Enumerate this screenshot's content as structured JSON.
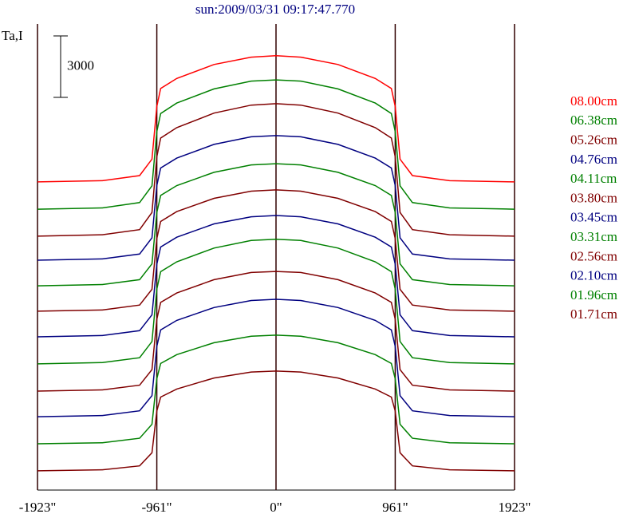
{
  "chart_data": {
    "type": "line",
    "title": "sun:2009/03/31 09:17:47.770",
    "y_label": "Ta,I",
    "scale_bar": 3000,
    "x": [
      -1923,
      -1400,
      -1100,
      -1000,
      -961,
      -930,
      -800,
      -500,
      -200,
      0,
      200,
      500,
      800,
      930,
      961,
      1000,
      1100,
      1400,
      1923
    ],
    "xlim": [
      -1923,
      1923
    ],
    "xticks": [
      {
        "value": -1923,
        "label": "-1923\""
      },
      {
        "value": -961,
        "label": "-961\""
      },
      {
        "value": 0,
        "label": "0\""
      },
      {
        "value": 961,
        "label": "961\""
      },
      {
        "value": 1923,
        "label": "1923\""
      }
    ],
    "ylim": [
      0,
      22750
    ],
    "grid": true,
    "legend": "right",
    "series": [
      {
        "name": "08.00cm",
        "color": "#ff0000",
        "values": [
          15040,
          15100,
          15350,
          16150,
          18730,
          19600,
          20090,
          20770,
          21130,
          21200,
          21130,
          20770,
          20090,
          19600,
          18730,
          16150,
          15350,
          15100,
          15040
        ]
      },
      {
        "name": "06.38cm",
        "color": "#008000",
        "values": [
          13710,
          13770,
          14030,
          14850,
          17500,
          18380,
          18890,
          19580,
          19960,
          20020,
          19960,
          19580,
          18890,
          18380,
          17500,
          14850,
          14030,
          13770,
          13710
        ]
      },
      {
        "name": "05.26cm",
        "color": "#800000",
        "values": [
          12390,
          12460,
          12710,
          13550,
          16270,
          17180,
          17690,
          18400,
          18790,
          18860,
          18790,
          18400,
          17690,
          17180,
          16270,
          13550,
          12710,
          12460,
          12390
        ]
      },
      {
        "name": "04.76cm",
        "color": "#000080",
        "values": [
          11220,
          11280,
          11520,
          12310,
          14870,
          15720,
          16200,
          16870,
          17240,
          17300,
          17240,
          16870,
          16200,
          15720,
          14870,
          12310,
          11520,
          11280,
          11220
        ]
      },
      {
        "name": "04.11cm",
        "color": "#008000",
        "values": [
          9970,
          10030,
          10270,
          11040,
          13550,
          14380,
          14860,
          15510,
          15870,
          15930,
          15870,
          15510,
          14860,
          14380,
          13550,
          11040,
          10270,
          10030,
          9970
        ]
      },
      {
        "name": "03.80cm",
        "color": "#800000",
        "values": [
          8730,
          8790,
          9030,
          9800,
          12280,
          13110,
          13590,
          14240,
          14590,
          14650,
          14590,
          14240,
          13590,
          13110,
          12280,
          9800,
          9030,
          8790,
          8730
        ]
      },
      {
        "name": "03.45cm",
        "color": "#000080",
        "values": [
          7480,
          7540,
          7780,
          8550,
          11030,
          11860,
          12340,
          12990,
          13340,
          13400,
          13340,
          12990,
          12340,
          11860,
          11030,
          8550,
          7780,
          7540,
          7480
        ]
      },
      {
        "name": "03.31cm",
        "color": "#008000",
        "values": [
          6160,
          6220,
          6460,
          7250,
          9810,
          10660,
          11140,
          11810,
          12180,
          12240,
          12180,
          11810,
          11140,
          10660,
          9810,
          7250,
          6460,
          6220,
          6160
        ]
      },
      {
        "name": "02.56cm",
        "color": "#800000",
        "values": [
          4830,
          4890,
          5120,
          5880,
          8340,
          9160,
          9620,
          10270,
          10620,
          10670,
          10620,
          10270,
          9620,
          9160,
          8340,
          5880,
          5120,
          4890,
          4830
        ]
      },
      {
        "name": "02.10cm",
        "color": "#000080",
        "values": [
          3580,
          3640,
          3870,
          4610,
          7020,
          7820,
          8280,
          8910,
          9250,
          9310,
          9250,
          8910,
          8280,
          7820,
          7020,
          4610,
          3870,
          3640,
          3580
        ]
      },
      {
        "name": "01.96cm",
        "color": "#008000",
        "values": [
          2260,
          2310,
          2530,
          3210,
          5440,
          6180,
          6610,
          7190,
          7510,
          7560,
          7510,
          7190,
          6610,
          6180,
          5440,
          3210,
          2530,
          2310,
          2260
        ]
      },
      {
        "name": "01.71cm",
        "color": "#800000",
        "values": [
          940,
          990,
          1180,
          1820,
          3860,
          4540,
          4930,
          5470,
          5760,
          5810,
          5760,
          5470,
          4930,
          4540,
          3860,
          1820,
          1180,
          990,
          940
        ]
      }
    ]
  }
}
